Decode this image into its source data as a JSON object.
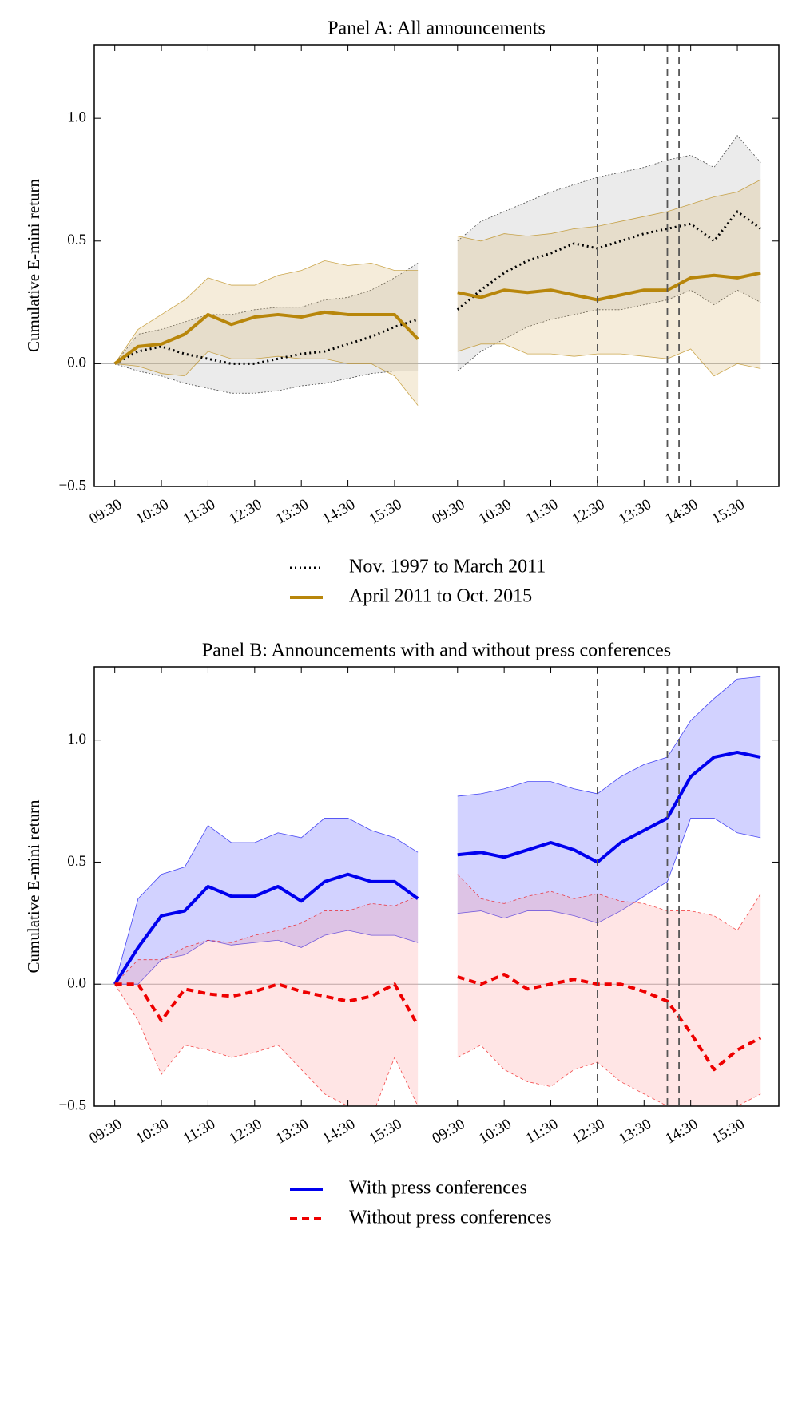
{
  "chart_data": [
    {
      "type": "line",
      "title": "Panel A: All announcements",
      "ylabel": "Cumulative E-mini return",
      "x": [
        0,
        0.5,
        1,
        1.5,
        2,
        2.5,
        3,
        3.5,
        4,
        4.5,
        5,
        5.5,
        6,
        6.5,
        6.9,
        7.35,
        7.85,
        8.35,
        8.85,
        9.35,
        9.85,
        10.35,
        10.85,
        11.35,
        11.85,
        12.35,
        12.85,
        13.35,
        13.85
      ],
      "xlim": [
        -0.44,
        14.24
      ],
      "xticks": [
        {
          "value": 0,
          "label": "09:30"
        },
        {
          "value": 1,
          "label": "10:30"
        },
        {
          "value": 2,
          "label": "11:30"
        },
        {
          "value": 3,
          "label": "12:30"
        },
        {
          "value": 4,
          "label": "13:30"
        },
        {
          "value": 5,
          "label": "14:30"
        },
        {
          "value": 6,
          "label": "15:30"
        },
        {
          "value": 7.35,
          "label": "09:30"
        },
        {
          "value": 8.35,
          "label": "10:30"
        },
        {
          "value": 9.35,
          "label": "11:30"
        },
        {
          "value": 10.35,
          "label": "12:30"
        },
        {
          "value": 11.35,
          "label": "13:30"
        },
        {
          "value": 12.35,
          "label": "14:30"
        },
        {
          "value": 13.35,
          "label": "15:30"
        }
      ],
      "ylim": [
        -0.5,
        1.3
      ],
      "yticks": [
        {
          "value": -0.5,
          "label": "−0.5"
        },
        {
          "value": 0,
          "label": "0.0"
        },
        0.5,
        {
          "value": 1,
          "label": "1.0"
        }
      ],
      "hline": 0,
      "vlines": [
        10.35,
        11.85,
        12.1
      ],
      "series": [
        {
          "name": "Nov. 1997 to March 2011",
          "color": "#000000",
          "band_color": "#b0b0b0",
          "style": "dotted",
          "values": [
            0,
            0.05,
            0.07,
            0.04,
            0.02,
            0.0,
            0.0,
            0.02,
            0.04,
            0.05,
            0.08,
            0.11,
            0.15,
            0.18,
            null,
            0.22,
            0.3,
            0.37,
            0.42,
            0.45,
            0.49,
            0.47,
            0.5,
            0.53,
            0.55,
            0.57,
            0.5,
            0.62,
            0.55
          ],
          "upper": [
            0,
            0.12,
            0.14,
            0.17,
            0.2,
            0.2,
            0.22,
            0.23,
            0.23,
            0.26,
            0.27,
            0.3,
            0.35,
            0.41,
            null,
            0.5,
            0.58,
            0.62,
            0.66,
            0.7,
            0.73,
            0.76,
            0.78,
            0.8,
            0.83,
            0.85,
            0.8,
            0.93,
            0.82
          ],
          "lower": [
            0,
            -0.03,
            -0.05,
            -0.08,
            -0.1,
            -0.12,
            -0.12,
            -0.11,
            -0.09,
            -0.08,
            -0.06,
            -0.04,
            -0.03,
            -0.03,
            null,
            -0.03,
            0.05,
            0.1,
            0.15,
            0.18,
            0.2,
            0.22,
            0.22,
            0.24,
            0.26,
            0.3,
            0.24,
            0.3,
            0.25
          ]
        },
        {
          "name": "April 2011 to Oct. 2015",
          "color": "#b8860b",
          "band_color": "#d9b56a",
          "style": "solid",
          "values": [
            0,
            0.07,
            0.08,
            0.12,
            0.2,
            0.16,
            0.19,
            0.2,
            0.19,
            0.21,
            0.2,
            0.2,
            0.2,
            0.1,
            null,
            0.29,
            0.27,
            0.3,
            0.29,
            0.3,
            0.28,
            0.26,
            0.28,
            0.3,
            0.3,
            0.35,
            0.36,
            0.35,
            0.37
          ],
          "upper": [
            0,
            0.14,
            0.2,
            0.26,
            0.35,
            0.32,
            0.32,
            0.36,
            0.38,
            0.42,
            0.4,
            0.41,
            0.38,
            0.38,
            null,
            0.52,
            0.5,
            0.53,
            0.52,
            0.53,
            0.55,
            0.56,
            0.58,
            0.6,
            0.62,
            0.65,
            0.68,
            0.7,
            0.75
          ],
          "lower": [
            0,
            -0.01,
            -0.04,
            -0.05,
            0.05,
            0.02,
            0.02,
            0.03,
            0.02,
            0.02,
            0.0,
            0.0,
            -0.05,
            -0.17,
            null,
            0.05,
            0.08,
            0.08,
            0.04,
            0.04,
            0.03,
            0.04,
            0.04,
            0.03,
            0.02,
            0.06,
            -0.05,
            0.0,
            -0.02
          ]
        }
      ]
    },
    {
      "type": "line",
      "title": "Panel B: Announcements with and without press conferences",
      "ylabel": "Cumulative E-mini return",
      "x": [
        0,
        0.5,
        1,
        1.5,
        2,
        2.5,
        3,
        3.5,
        4,
        4.5,
        5,
        5.5,
        6,
        6.5,
        6.9,
        7.35,
        7.85,
        8.35,
        8.85,
        9.35,
        9.85,
        10.35,
        10.85,
        11.35,
        11.85,
        12.35,
        12.85,
        13.35,
        13.85
      ],
      "xlim": [
        -0.44,
        14.24
      ],
      "xticks": [
        {
          "value": 0,
          "label": "09:30"
        },
        {
          "value": 1,
          "label": "10:30"
        },
        {
          "value": 2,
          "label": "11:30"
        },
        {
          "value": 3,
          "label": "12:30"
        },
        {
          "value": 4,
          "label": "13:30"
        },
        {
          "value": 5,
          "label": "14:30"
        },
        {
          "value": 6,
          "label": "15:30"
        },
        {
          "value": 7.35,
          "label": "09:30"
        },
        {
          "value": 8.35,
          "label": "10:30"
        },
        {
          "value": 9.35,
          "label": "11:30"
        },
        {
          "value": 10.35,
          "label": "12:30"
        },
        {
          "value": 11.35,
          "label": "13:30"
        },
        {
          "value": 12.35,
          "label": "14:30"
        },
        {
          "value": 13.35,
          "label": "15:30"
        }
      ],
      "ylim": [
        -0.5,
        1.3
      ],
      "yticks": [
        {
          "value": -0.5,
          "label": "−0.5"
        },
        {
          "value": 0,
          "label": "0.0"
        },
        0.5,
        {
          "value": 1,
          "label": "1.0"
        }
      ],
      "hline": 0,
      "vlines": [
        10.35,
        11.85,
        12.1
      ],
      "series": [
        {
          "name": "With press conferences",
          "color": "#0000ee",
          "band_color": "#4d4dff",
          "style": "solid",
          "values": [
            0,
            0.15,
            0.28,
            0.3,
            0.4,
            0.36,
            0.36,
            0.4,
            0.34,
            0.42,
            0.45,
            0.42,
            0.42,
            0.35,
            null,
            0.53,
            0.54,
            0.52,
            0.55,
            0.58,
            0.55,
            0.5,
            0.58,
            0.63,
            0.68,
            0.85,
            0.93,
            0.95,
            0.93
          ],
          "upper": [
            0,
            0.35,
            0.45,
            0.48,
            0.65,
            0.58,
            0.58,
            0.62,
            0.6,
            0.68,
            0.68,
            0.63,
            0.6,
            0.54,
            null,
            0.77,
            0.78,
            0.8,
            0.83,
            0.83,
            0.8,
            0.78,
            0.85,
            0.9,
            0.93,
            1.08,
            1.17,
            1.25,
            1.26
          ],
          "lower": [
            0,
            0.0,
            0.1,
            0.12,
            0.18,
            0.16,
            0.17,
            0.18,
            0.15,
            0.2,
            0.22,
            0.2,
            0.2,
            0.17,
            null,
            0.29,
            0.3,
            0.27,
            0.3,
            0.3,
            0.28,
            0.25,
            0.3,
            0.36,
            0.42,
            0.68,
            0.68,
            0.62,
            0.6
          ]
        },
        {
          "name": "Without press conferences",
          "color": "#ee0000",
          "band_color": "#ff9999",
          "style": "dashed",
          "values": [
            0,
            0.0,
            -0.15,
            -0.02,
            -0.04,
            -0.05,
            -0.03,
            0.0,
            -0.03,
            -0.05,
            -0.07,
            -0.05,
            0.0,
            -0.17,
            null,
            0.03,
            0.0,
            0.04,
            -0.02,
            0.0,
            0.02,
            0.0,
            0.0,
            -0.03,
            -0.07,
            -0.2,
            -0.35,
            -0.27,
            -0.22
          ],
          "upper": [
            0,
            0.1,
            0.1,
            0.15,
            0.18,
            0.17,
            0.2,
            0.22,
            0.25,
            0.3,
            0.3,
            0.33,
            0.32,
            0.36,
            null,
            0.45,
            0.35,
            0.33,
            0.36,
            0.38,
            0.35,
            0.37,
            0.34,
            0.33,
            0.3,
            0.3,
            0.28,
            0.22,
            0.37
          ],
          "lower": [
            0,
            -0.15,
            -0.37,
            -0.25,
            -0.27,
            -0.3,
            -0.28,
            -0.25,
            -0.35,
            -0.45,
            -0.5,
            -0.55,
            -0.3,
            -0.5,
            null,
            -0.3,
            -0.25,
            -0.35,
            -0.4,
            -0.42,
            -0.35,
            -0.32,
            -0.4,
            -0.45,
            -0.5,
            -0.55,
            -0.55,
            -0.5,
            -0.45
          ]
        }
      ]
    }
  ]
}
